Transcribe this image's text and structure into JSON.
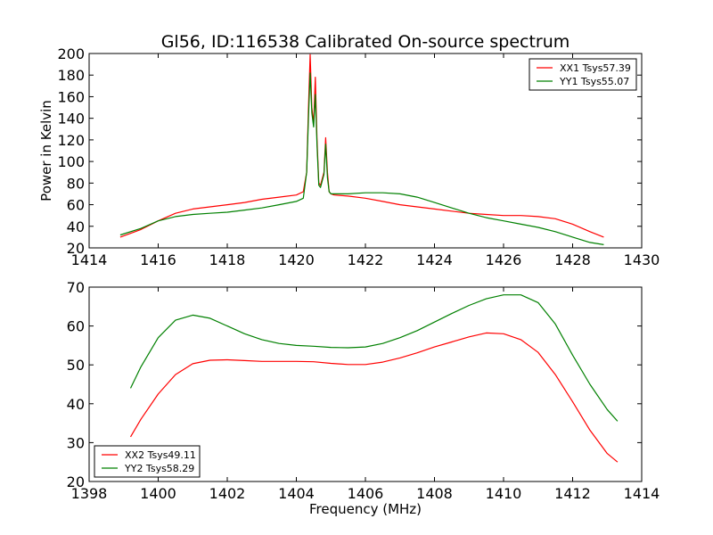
{
  "chart_data": [
    {
      "type": "line",
      "title": "Gl56, ID:116538 Calibrated On-source spectrum",
      "xlabel": "",
      "ylabel": "Power in Kelvin",
      "xlim": [
        1414,
        1430
      ],
      "ylim": [
        20,
        200
      ],
      "xticks": [
        1414,
        1416,
        1418,
        1420,
        1422,
        1424,
        1426,
        1428,
        1430
      ],
      "yticks": [
        20,
        40,
        60,
        80,
        100,
        120,
        140,
        160,
        180,
        200
      ],
      "legend_position": "top-right",
      "series": [
        {
          "name": "XX1 Tsys57.39",
          "color": "#ff0000",
          "x": [
            1414.9,
            1415.5,
            1416.0,
            1416.5,
            1417.0,
            1417.5,
            1418.0,
            1418.5,
            1419.0,
            1419.5,
            1420.0,
            1420.2,
            1420.3,
            1420.35,
            1420.4,
            1420.45,
            1420.5,
            1420.55,
            1420.6,
            1420.65,
            1420.7,
            1420.8,
            1420.85,
            1420.9,
            1420.95,
            1421.0,
            1421.1,
            1421.5,
            1422.0,
            1422.5,
            1423.0,
            1423.5,
            1424.0,
            1424.5,
            1425.0,
            1425.5,
            1426.0,
            1426.5,
            1427.0,
            1427.5,
            1428.0,
            1428.5,
            1428.9
          ],
          "y": [
            30,
            37,
            45,
            52,
            56,
            58,
            60,
            62,
            65,
            67,
            69,
            72,
            90,
            150,
            199,
            150,
            135,
            178,
            120,
            80,
            78,
            90,
            122,
            90,
            72,
            70,
            69,
            68,
            66,
            63,
            60,
            58,
            56,
            54,
            52,
            51,
            50,
            50,
            49,
            47,
            42,
            35,
            30
          ]
        },
        {
          "name": "YY1 Tsys55.07",
          "color": "#008000",
          "x": [
            1414.9,
            1415.5,
            1416.0,
            1416.5,
            1417.0,
            1417.5,
            1418.0,
            1418.5,
            1419.0,
            1419.5,
            1420.0,
            1420.2,
            1420.3,
            1420.35,
            1420.4,
            1420.45,
            1420.5,
            1420.55,
            1420.6,
            1420.65,
            1420.7,
            1420.8,
            1420.85,
            1420.9,
            1420.95,
            1421.0,
            1421.1,
            1421.5,
            1422.0,
            1422.5,
            1423.0,
            1423.5,
            1424.0,
            1424.5,
            1425.0,
            1425.5,
            1426.0,
            1426.5,
            1427.0,
            1427.5,
            1428.0,
            1428.5,
            1428.9
          ],
          "y": [
            32,
            38,
            45,
            49,
            51,
            52,
            53,
            55,
            57,
            60,
            63,
            66,
            90,
            140,
            182,
            145,
            132,
            162,
            115,
            78,
            76,
            88,
            116,
            85,
            72,
            70,
            70,
            70,
            71,
            71,
            70,
            67,
            62,
            57,
            52,
            48,
            45,
            42,
            39,
            35,
            30,
            25,
            23
          ]
        }
      ]
    },
    {
      "type": "line",
      "title": "",
      "xlabel": "Frequency (MHz)",
      "ylabel": "",
      "xlim": [
        1398,
        1414
      ],
      "ylim": [
        20,
        70
      ],
      "xticks": [
        1398,
        1400,
        1402,
        1404,
        1406,
        1408,
        1410,
        1412,
        1414
      ],
      "yticks": [
        20,
        30,
        40,
        50,
        60,
        70
      ],
      "legend_position": "bottom-left",
      "series": [
        {
          "name": "XX2 Tsys49.11",
          "color": "#ff0000",
          "x": [
            1399.2,
            1399.5,
            1400.0,
            1400.5,
            1401.0,
            1401.5,
            1402.0,
            1402.5,
            1403.0,
            1403.5,
            1404.0,
            1404.5,
            1405.0,
            1405.5,
            1406.0,
            1406.5,
            1407.0,
            1407.5,
            1408.0,
            1408.5,
            1409.0,
            1409.5,
            1410.0,
            1410.5,
            1411.0,
            1411.5,
            1412.0,
            1412.5,
            1413.0,
            1413.3
          ],
          "y": [
            31.5,
            36,
            42.5,
            47.5,
            50.3,
            51.2,
            51.3,
            51.1,
            50.9,
            50.9,
            50.9,
            50.8,
            50.4,
            50.1,
            50.1,
            50.7,
            51.8,
            53.1,
            54.6,
            55.9,
            57.2,
            58.2,
            58.0,
            56.5,
            53.2,
            47.5,
            40.5,
            33.2,
            27.2,
            25.0
          ]
        },
        {
          "name": "YY2 Tsys58.29",
          "color": "#008000",
          "x": [
            1399.2,
            1399.5,
            1400.0,
            1400.5,
            1401.0,
            1401.5,
            1402.0,
            1402.5,
            1403.0,
            1403.5,
            1404.0,
            1404.5,
            1405.0,
            1405.5,
            1406.0,
            1406.5,
            1407.0,
            1407.5,
            1408.0,
            1408.5,
            1409.0,
            1409.5,
            1410.0,
            1410.5,
            1411.0,
            1411.5,
            1412.0,
            1412.5,
            1413.0,
            1413.3
          ],
          "y": [
            44,
            49.5,
            57,
            61.5,
            62.8,
            62,
            60,
            58,
            56.5,
            55.5,
            55,
            54.8,
            54.5,
            54.4,
            54.6,
            55.5,
            57,
            58.8,
            61,
            63.2,
            65.3,
            67.0,
            68.0,
            68.0,
            66.0,
            60.5,
            52.5,
            45,
            38.5,
            35.5
          ]
        }
      ]
    }
  ]
}
